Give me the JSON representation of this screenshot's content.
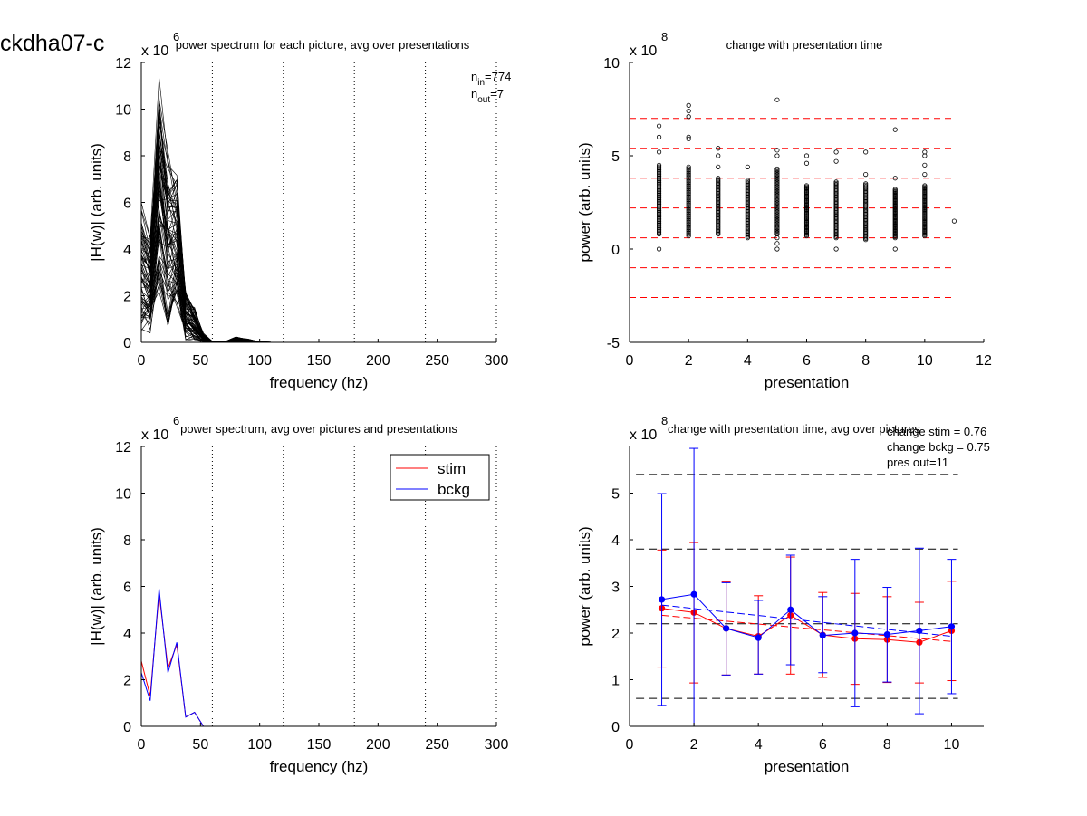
{
  "figure_title": "ckdha07-c",
  "chart_data": [
    {
      "type": "line",
      "title": "power spectrum for each picture, avg over presentations",
      "xlabel": "frequency (hz)",
      "ylabel": "|H(w)| (arb. units)",
      "y_multiplier": "x 10",
      "y_multiplier_exp": "6",
      "xlim": [
        0,
        300
      ],
      "ylim": [
        0,
        12
      ],
      "xticks": [
        0,
        50,
        100,
        150,
        200,
        250,
        300
      ],
      "yticks": [
        0,
        2,
        4,
        6,
        8,
        10,
        12
      ],
      "vlines": [
        60,
        120,
        180,
        240,
        300
      ],
      "annotation": {
        "n_in_label": "n",
        "n_in_sub": "in",
        "n_in_value": "=774",
        "n_out_label": "n",
        "n_out_sub": "out",
        "n_out_value": "=7"
      },
      "line_color": "#000000",
      "n_curves": 774,
      "x": [
        0,
        7.5,
        15,
        22.5,
        30,
        37.5,
        45,
        52.5,
        60,
        70,
        80,
        90,
        100,
        110,
        120,
        300
      ],
      "envelope_upper": [
        6.0,
        4.8,
        11.5,
        8.5,
        7.6,
        2.3,
        1.5,
        0.4,
        0.05,
        0.02,
        0.25,
        0.15,
        0.02,
        0.01,
        0.0,
        0.0
      ],
      "envelope_lower": [
        0.5,
        0.4,
        2.0,
        0.7,
        1.5,
        0.1,
        0.05,
        0.0,
        0.0,
        0.0,
        0.0,
        0.0,
        0.0,
        0.0,
        0.0,
        0.0
      ],
      "representative_curve": [
        2.5,
        1.2,
        5.8,
        2.4,
        3.6,
        0.4,
        0.6,
        0.05,
        0.01,
        0.0,
        0.1,
        0.05,
        0.0,
        0.0,
        0.0,
        0.0
      ]
    },
    {
      "type": "scatter",
      "title": "change with presentation time",
      "xlabel": "presentation",
      "ylabel": "power (arb. units)",
      "y_multiplier": "x 10",
      "y_multiplier_exp": "8",
      "xlim": [
        0,
        12
      ],
      "ylim": [
        -5,
        10
      ],
      "xticks": [
        0,
        2,
        4,
        6,
        8,
        10,
        12
      ],
      "yticks": [
        -5,
        0,
        5,
        10
      ],
      "marker": "open-circle",
      "marker_color": "#000000",
      "hlines_color": "#ff0000",
      "hlines": [
        7.0,
        5.4,
        3.8,
        2.2,
        0.6,
        -1.0,
        -2.6
      ],
      "points": [
        {
          "x": 1,
          "y_min": 0.8,
          "y_max": 4.5,
          "outliers": [
            0.0,
            5.2,
            6.0,
            6.6
          ]
        },
        {
          "x": 2,
          "y_min": 0.7,
          "y_max": 4.4,
          "outliers": [
            5.9,
            6.0,
            7.1,
            7.4,
            7.7
          ]
        },
        {
          "x": 3,
          "y_min": 0.8,
          "y_max": 3.8,
          "outliers": [
            4.4,
            5.0,
            5.4
          ]
        },
        {
          "x": 4,
          "y_min": 0.6,
          "y_max": 3.7,
          "outliers": [
            4.4
          ]
        },
        {
          "x": 5,
          "y_min": 0.8,
          "y_max": 4.3,
          "outliers": [
            0.0,
            0.3,
            0.6,
            5.0,
            5.3,
            8.0
          ]
        },
        {
          "x": 6,
          "y_min": 0.7,
          "y_max": 3.4,
          "outliers": [
            4.6,
            5.0
          ]
        },
        {
          "x": 7,
          "y_min": 0.6,
          "y_max": 3.6,
          "outliers": [
            0.0,
            4.7,
            5.2
          ]
        },
        {
          "x": 8,
          "y_min": 0.5,
          "y_max": 3.5,
          "outliers": [
            4.0,
            5.2
          ]
        },
        {
          "x": 9,
          "y_min": 0.6,
          "y_max": 3.2,
          "outliers": [
            0.0,
            3.8,
            6.4
          ]
        },
        {
          "x": 10,
          "y_min": 0.7,
          "y_max": 3.4,
          "outliers": [
            4.0,
            4.5,
            5.0,
            5.2
          ]
        },
        {
          "x": 11,
          "y_min": 1.5,
          "y_max": 1.5,
          "outliers": []
        }
      ]
    },
    {
      "type": "line",
      "title": "power spectrum, avg over pictures and presentations",
      "xlabel": "frequency (hz)",
      "ylabel": "|H(w)| (arb. units)",
      "y_multiplier": "x 10",
      "y_multiplier_exp": "6",
      "xlim": [
        0,
        300
      ],
      "ylim": [
        0,
        12
      ],
      "xticks": [
        0,
        50,
        100,
        150,
        200,
        250,
        300
      ],
      "yticks": [
        0,
        2,
        4,
        6,
        8,
        10,
        12
      ],
      "vlines": [
        60,
        120,
        180,
        240,
        300
      ],
      "legend": {
        "position": "top-right",
        "entries": [
          {
            "name": "stim",
            "color": "#ff0000"
          },
          {
            "name": "bckg",
            "color": "#0000ff"
          }
        ]
      },
      "x": [
        0,
        7.5,
        15,
        22.5,
        30,
        37.5,
        45,
        52.5,
        60,
        90,
        120,
        300
      ],
      "series": [
        {
          "name": "stim",
          "color": "#ff0000",
          "values": [
            2.8,
            1.3,
            5.7,
            2.5,
            3.5,
            0.4,
            0.6,
            0.0,
            0.0,
            0.0,
            0.0,
            0.0
          ]
        },
        {
          "name": "bckg",
          "color": "#0000ff",
          "values": [
            2.3,
            1.1,
            5.9,
            2.3,
            3.6,
            0.4,
            0.6,
            0.0,
            0.0,
            0.0,
            0.0,
            0.0
          ]
        }
      ]
    },
    {
      "type": "line",
      "title": "change with presentation time, avg over pictures",
      "xlabel": "presentation",
      "ylabel": "power (arb. units)",
      "y_multiplier": "x 10",
      "y_multiplier_exp": "8",
      "xlim": [
        0,
        11
      ],
      "ylim": [
        0,
        6
      ],
      "xticks": [
        0,
        2,
        4,
        6,
        8,
        10
      ],
      "yticks": [
        0,
        1,
        2,
        3,
        4,
        5
      ],
      "notes": [
        "change stim = 0.76",
        "change bckg = 0.75",
        "pres out=11"
      ],
      "hlines_color": "#000000",
      "hlines": [
        5.4,
        3.8,
        2.2,
        0.6
      ],
      "x": [
        1,
        2,
        3,
        4,
        5,
        6,
        7,
        8,
        9,
        10
      ],
      "series": [
        {
          "name": "stim",
          "color": "#ff0000",
          "values": [
            2.53,
            2.44,
            2.1,
            1.93,
            2.38,
            1.96,
            1.88,
            1.86,
            1.8,
            2.05
          ],
          "err_low": [
            1.27,
            0.93,
            1.1,
            1.12,
            1.12,
            1.05,
            0.9,
            0.94,
            0.93,
            0.98
          ],
          "err_high": [
            3.78,
            3.94,
            3.1,
            2.8,
            3.63,
            2.87,
            2.85,
            2.78,
            2.66,
            3.11
          ],
          "trend": [
            2.38,
            1.82
          ]
        },
        {
          "name": "bckg",
          "color": "#0000ff",
          "values": [
            2.72,
            2.83,
            2.1,
            1.9,
            2.5,
            1.95,
            2.0,
            1.97,
            2.05,
            2.14
          ],
          "err_low": [
            0.45,
            -0.3,
            1.1,
            1.12,
            1.32,
            1.15,
            0.42,
            0.95,
            0.27,
            0.7
          ],
          "err_high": [
            4.99,
            5.96,
            3.08,
            2.7,
            3.67,
            2.78,
            3.58,
            2.98,
            3.82,
            3.58
          ],
          "trend": [
            2.6,
            1.93
          ]
        }
      ]
    }
  ]
}
